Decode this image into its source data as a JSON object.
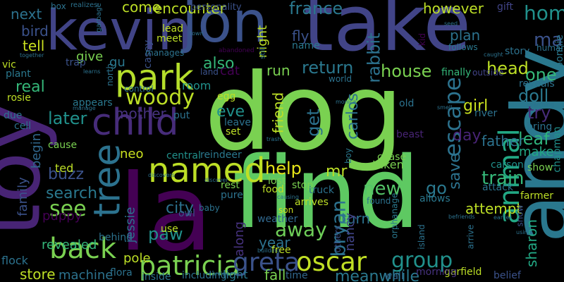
{
  "background": "#000000",
  "words": [
    {
      "text": "dog",
      "color": "#7ad151"
    },
    {
      "text": "la",
      "color": "#440154"
    },
    {
      "text": "find",
      "color": "#5ec962"
    },
    {
      "text": "take",
      "color": "#414487"
    },
    {
      "text": "andy",
      "color": "#2a788e"
    },
    {
      "text": "toy",
      "color": "#482475"
    },
    {
      "text": "kevin",
      "color": "#414487"
    },
    {
      "text": "jon",
      "color": "#3b528b"
    },
    {
      "text": "park",
      "color": "#b5de2b"
    },
    {
      "text": "child",
      "color": "#472c7a"
    },
    {
      "text": "named",
      "color": "#bddf26"
    },
    {
      "text": "tree",
      "color": "#2c728e"
    },
    {
      "text": "animal",
      "color": "#22a884"
    },
    {
      "text": "back",
      "color": "#7ad151"
    },
    {
      "text": "patricia",
      "color": "#7ad151"
    },
    {
      "text": "oscar",
      "color": "#c0df25"
    },
    {
      "text": "greta",
      "color": "#3b528b"
    },
    {
      "text": "group",
      "color": "#21918c"
    },
    {
      "text": "woody",
      "color": "#bddf26"
    },
    {
      "text": "return",
      "color": "#2a788e"
    },
    {
      "text": "house",
      "color": "#7ad151"
    },
    {
      "text": "escape",
      "color": "#2c728e"
    },
    {
      "text": "home",
      "color": "#21918c"
    },
    {
      "text": "head",
      "color": "#bddf26"
    },
    {
      "text": "one",
      "color": "#35b779"
    },
    {
      "text": "doll",
      "color": "#2a788e"
    },
    {
      "text": "try",
      "color": "#472c7a"
    },
    {
      "text": "man",
      "color": "#3b528b"
    },
    {
      "text": "leaf",
      "color": "#2fb47c"
    },
    {
      "text": "father",
      "color": "#2c728e"
    },
    {
      "text": "train",
      "color": "#35b779"
    },
    {
      "text": "new",
      "color": "#54c568"
    },
    {
      "text": "help",
      "color": "#e5e419"
    },
    {
      "text": "away",
      "color": "#6ece58"
    },
    {
      "text": "attempt",
      "color": "#bddf26"
    },
    {
      "text": "bryan",
      "color": "#2c728e"
    },
    {
      "text": "france",
      "color": "#2a788e"
    },
    {
      "text": "however",
      "color": "#bddf26"
    },
    {
      "text": "rabbit",
      "color": "#2c728e"
    },
    {
      "text": "next",
      "color": "#2c728e"
    },
    {
      "text": "bird",
      "color": "#3b528b"
    },
    {
      "text": "tell",
      "color": "#cae11f"
    },
    {
      "text": "real",
      "color": "#35b779"
    },
    {
      "text": "later",
      "color": "#21918c"
    },
    {
      "text": "buzz",
      "color": "#3b528b"
    },
    {
      "text": "search",
      "color": "#2a788e"
    },
    {
      "text": "see",
      "color": "#7ad151"
    },
    {
      "text": "puppy",
      "color": "#440154"
    },
    {
      "text": "family",
      "color": "#3b528b"
    },
    {
      "text": "begin",
      "color": "#31688e"
    },
    {
      "text": "store",
      "color": "#bddf26"
    },
    {
      "text": "machine",
      "color": "#2c728e"
    },
    {
      "text": "paw",
      "color": "#21918c"
    },
    {
      "text": "city",
      "color": "#2c728e"
    },
    {
      "text": "jessie",
      "color": "#2c728e"
    },
    {
      "text": "mother",
      "color": "#46327e"
    },
    {
      "text": "eve",
      "color": "#21918c"
    },
    {
      "text": "also",
      "color": "#35b779"
    },
    {
      "text": "cat",
      "color": "#440154"
    },
    {
      "text": "friend",
      "color": "#bddf26"
    },
    {
      "text": "get",
      "color": "#2c728e"
    },
    {
      "text": "carlos",
      "color": "#2c728e"
    },
    {
      "text": "mr",
      "color": "#bddf26"
    },
    {
      "text": "go",
      "color": "#2a788e"
    },
    {
      "text": "save",
      "color": "#2c728e"
    },
    {
      "text": "day",
      "color": "#482475"
    },
    {
      "text": "girl",
      "color": "#cae11f"
    },
    {
      "text": "make",
      "color": "#22a884"
    },
    {
      "text": "meanwhile",
      "color": "#2a788e"
    },
    {
      "text": "run",
      "color": "#7ad151"
    },
    {
      "text": "fly",
      "color": "#3b528b"
    },
    {
      "text": "plan",
      "color": "#2c728e"
    },
    {
      "text": "give",
      "color": "#7ad151"
    },
    {
      "text": "come",
      "color": "#bddf26"
    },
    {
      "text": "encounter",
      "color": "#bddf26"
    },
    {
      "text": "gu",
      "color": "#2a788e"
    },
    {
      "text": "neo",
      "color": "#cae11f"
    },
    {
      "text": "night",
      "color": "#bddf26"
    },
    {
      "text": "lead",
      "color": "#c0df25"
    },
    {
      "text": "meet",
      "color": "#bddf26"
    },
    {
      "text": "personality",
      "color": "#3b528b"
    },
    {
      "text": "gift",
      "color": "#414487"
    },
    {
      "text": "story",
      "color": "#2c728e"
    },
    {
      "text": "follows",
      "color": "#2a788e"
    },
    {
      "text": "name",
      "color": "#2a788e"
    },
    {
      "text": "finally",
      "color": "#35b779"
    },
    {
      "text": "outside",
      "color": "#414487"
    },
    {
      "text": "central",
      "color": "#21918c"
    },
    {
      "text": "reindeer",
      "color": "#2a788e"
    },
    {
      "text": "food",
      "color": "#bddf26"
    },
    {
      "text": "truck",
      "color": "#2c728e"
    },
    {
      "text": "chase",
      "color": "#7ad151"
    },
    {
      "text": "taken",
      "color": "#7ad151"
    },
    {
      "text": "carson",
      "color": "#21918c"
    },
    {
      "text": "show",
      "color": "#7ad151"
    },
    {
      "text": "year",
      "color": "#2c728e"
    },
    {
      "text": "lost",
      "color": "#7ad151"
    },
    {
      "text": "stop",
      "color": "#7ad151"
    },
    {
      "text": "turn",
      "color": "#2c728e"
    },
    {
      "text": "nancy",
      "color": "#414487"
    },
    {
      "text": "along",
      "color": "#46327e"
    },
    {
      "text": "weather",
      "color": "#31688e"
    },
    {
      "text": "free",
      "color": "#bddf26"
    },
    {
      "text": "fall",
      "color": "#7ad151"
    },
    {
      "text": "time",
      "color": "#31688e"
    },
    {
      "text": "wall",
      "color": "#31688e"
    },
    {
      "text": "sharon",
      "color": "#22a884"
    },
    {
      "text": "eventually",
      "color": "#2c728e"
    },
    {
      "text": "belief",
      "color": "#3b528b"
    },
    {
      "text": "garfield",
      "color": "#bddf26"
    },
    {
      "text": "morning",
      "color": "#46327e"
    },
    {
      "text": "allows",
      "color": "#2a788e"
    },
    {
      "text": "found",
      "color": "#2c728e"
    },
    {
      "text": "arrives",
      "color": "#bddf26"
    },
    {
      "text": "son",
      "color": "#cae11f"
    },
    {
      "text": "light",
      "color": "#2a788e"
    },
    {
      "text": "including",
      "color": "#2c728e"
    },
    {
      "text": "inside",
      "color": "#2c728e"
    },
    {
      "text": "flora",
      "color": "#2c728e"
    },
    {
      "text": "pole",
      "color": "#bddf26"
    },
    {
      "text": "revealed",
      "color": "#35b779"
    },
    {
      "text": "flock",
      "color": "#2c728e"
    },
    {
      "text": "ted",
      "color": "#bddf26"
    },
    {
      "text": "cause",
      "color": "#7ad151"
    },
    {
      "text": "plant",
      "color": "#2a788e"
    },
    {
      "text": "rosie",
      "color": "#bddf26"
    },
    {
      "text": "due",
      "color": "#2c728e"
    },
    {
      "text": "cell",
      "color": "#2c728e"
    },
    {
      "text": "vic",
      "color": "#bddf26"
    },
    {
      "text": "appears",
      "color": "#2a788e"
    },
    {
      "text": "trap",
      "color": "#3b528b"
    },
    {
      "text": "casey",
      "color": "#3b528b"
    },
    {
      "text": "manages",
      "color": "#2c728e"
    },
    {
      "text": "north",
      "color": "#2c728e"
    },
    {
      "text": "control",
      "color": "#2c728e"
    },
    {
      "text": "room",
      "color": "#21918c"
    },
    {
      "text": "egg",
      "color": "#bddf26"
    },
    {
      "text": "leave",
      "color": "#2c728e"
    },
    {
      "text": "set",
      "color": "#bddf26"
    },
    {
      "text": "put",
      "color": "#2c728e"
    },
    {
      "text": "world",
      "color": "#2c728e"
    },
    {
      "text": "old",
      "color": "#2c728e"
    },
    {
      "text": "river",
      "color": "#2c728e"
    },
    {
      "text": "beast",
      "color": "#482475"
    },
    {
      "text": "bring",
      "color": "#2c728e"
    },
    {
      "text": "bonnie",
      "color": "#2a788e"
    },
    {
      "text": "human",
      "color": "#2c728e"
    },
    {
      "text": "reveals",
      "color": "#2c728e"
    },
    {
      "text": "attack",
      "color": "#2c728e"
    },
    {
      "text": "farmer",
      "color": "#bddf26"
    },
    {
      "text": "chapman",
      "color": "#21918c"
    },
    {
      "text": "rest",
      "color": "#7ad151"
    },
    {
      "text": "pure",
      "color": "#2c728e"
    },
    {
      "text": "owl",
      "color": "#3b528b"
    },
    {
      "text": "baby",
      "color": "#2c728e"
    },
    {
      "text": "use",
      "color": "#bddf26"
    },
    {
      "text": "behind",
      "color": "#2c728e"
    },
    {
      "text": "others",
      "color": "#3b528b"
    },
    {
      "text": "orphanage",
      "color": "#2a788e"
    },
    {
      "text": "island",
      "color": "#2c728e"
    },
    {
      "text": "arrive",
      "color": "#2c728e"
    },
    {
      "text": "snow",
      "color": "#3b528b"
    },
    {
      "text": "box",
      "color": "#2c728e"
    },
    {
      "text": "realizes",
      "color": "#2c728e"
    },
    {
      "text": "garbage",
      "color": "#2c728e"
    },
    {
      "text": "abandoned",
      "color": "#440154"
    },
    {
      "text": "land",
      "color": "#3b528b"
    },
    {
      "text": "town",
      "color": "#2c728e"
    },
    {
      "text": "seed",
      "color": "#2c728e"
    },
    {
      "text": "kid",
      "color": "#440154"
    },
    {
      "text": "still",
      "color": "#2c728e"
    },
    {
      "text": "monica",
      "color": "#2c728e"
    },
    {
      "text": "trash",
      "color": "#2c728e"
    },
    {
      "text": "boy",
      "color": "#2a788e"
    },
    {
      "text": "discover",
      "color": "#2c728e"
    },
    {
      "text": "discovers",
      "color": "#2c728e"
    },
    {
      "text": "causing",
      "color": "#2c728e"
    },
    {
      "text": "building",
      "color": "#2c728e"
    },
    {
      "text": "continue",
      "color": "#2c728e"
    },
    {
      "text": "together",
      "color": "#2c728e"
    },
    {
      "text": "learns",
      "color": "#2c728e"
    },
    {
      "text": "manage",
      "color": "#2c728e"
    },
    {
      "text": "smell",
      "color": "#2c728e"
    },
    {
      "text": "earlier",
      "color": "#2c728e"
    },
    {
      "text": "using",
      "color": "#2c728e"
    },
    {
      "text": "searching",
      "color": "#2c728e"
    },
    {
      "text": "befriends",
      "color": "#2c728e"
    },
    {
      "text": "caught",
      "color": "#2c728e"
    }
  ]
}
